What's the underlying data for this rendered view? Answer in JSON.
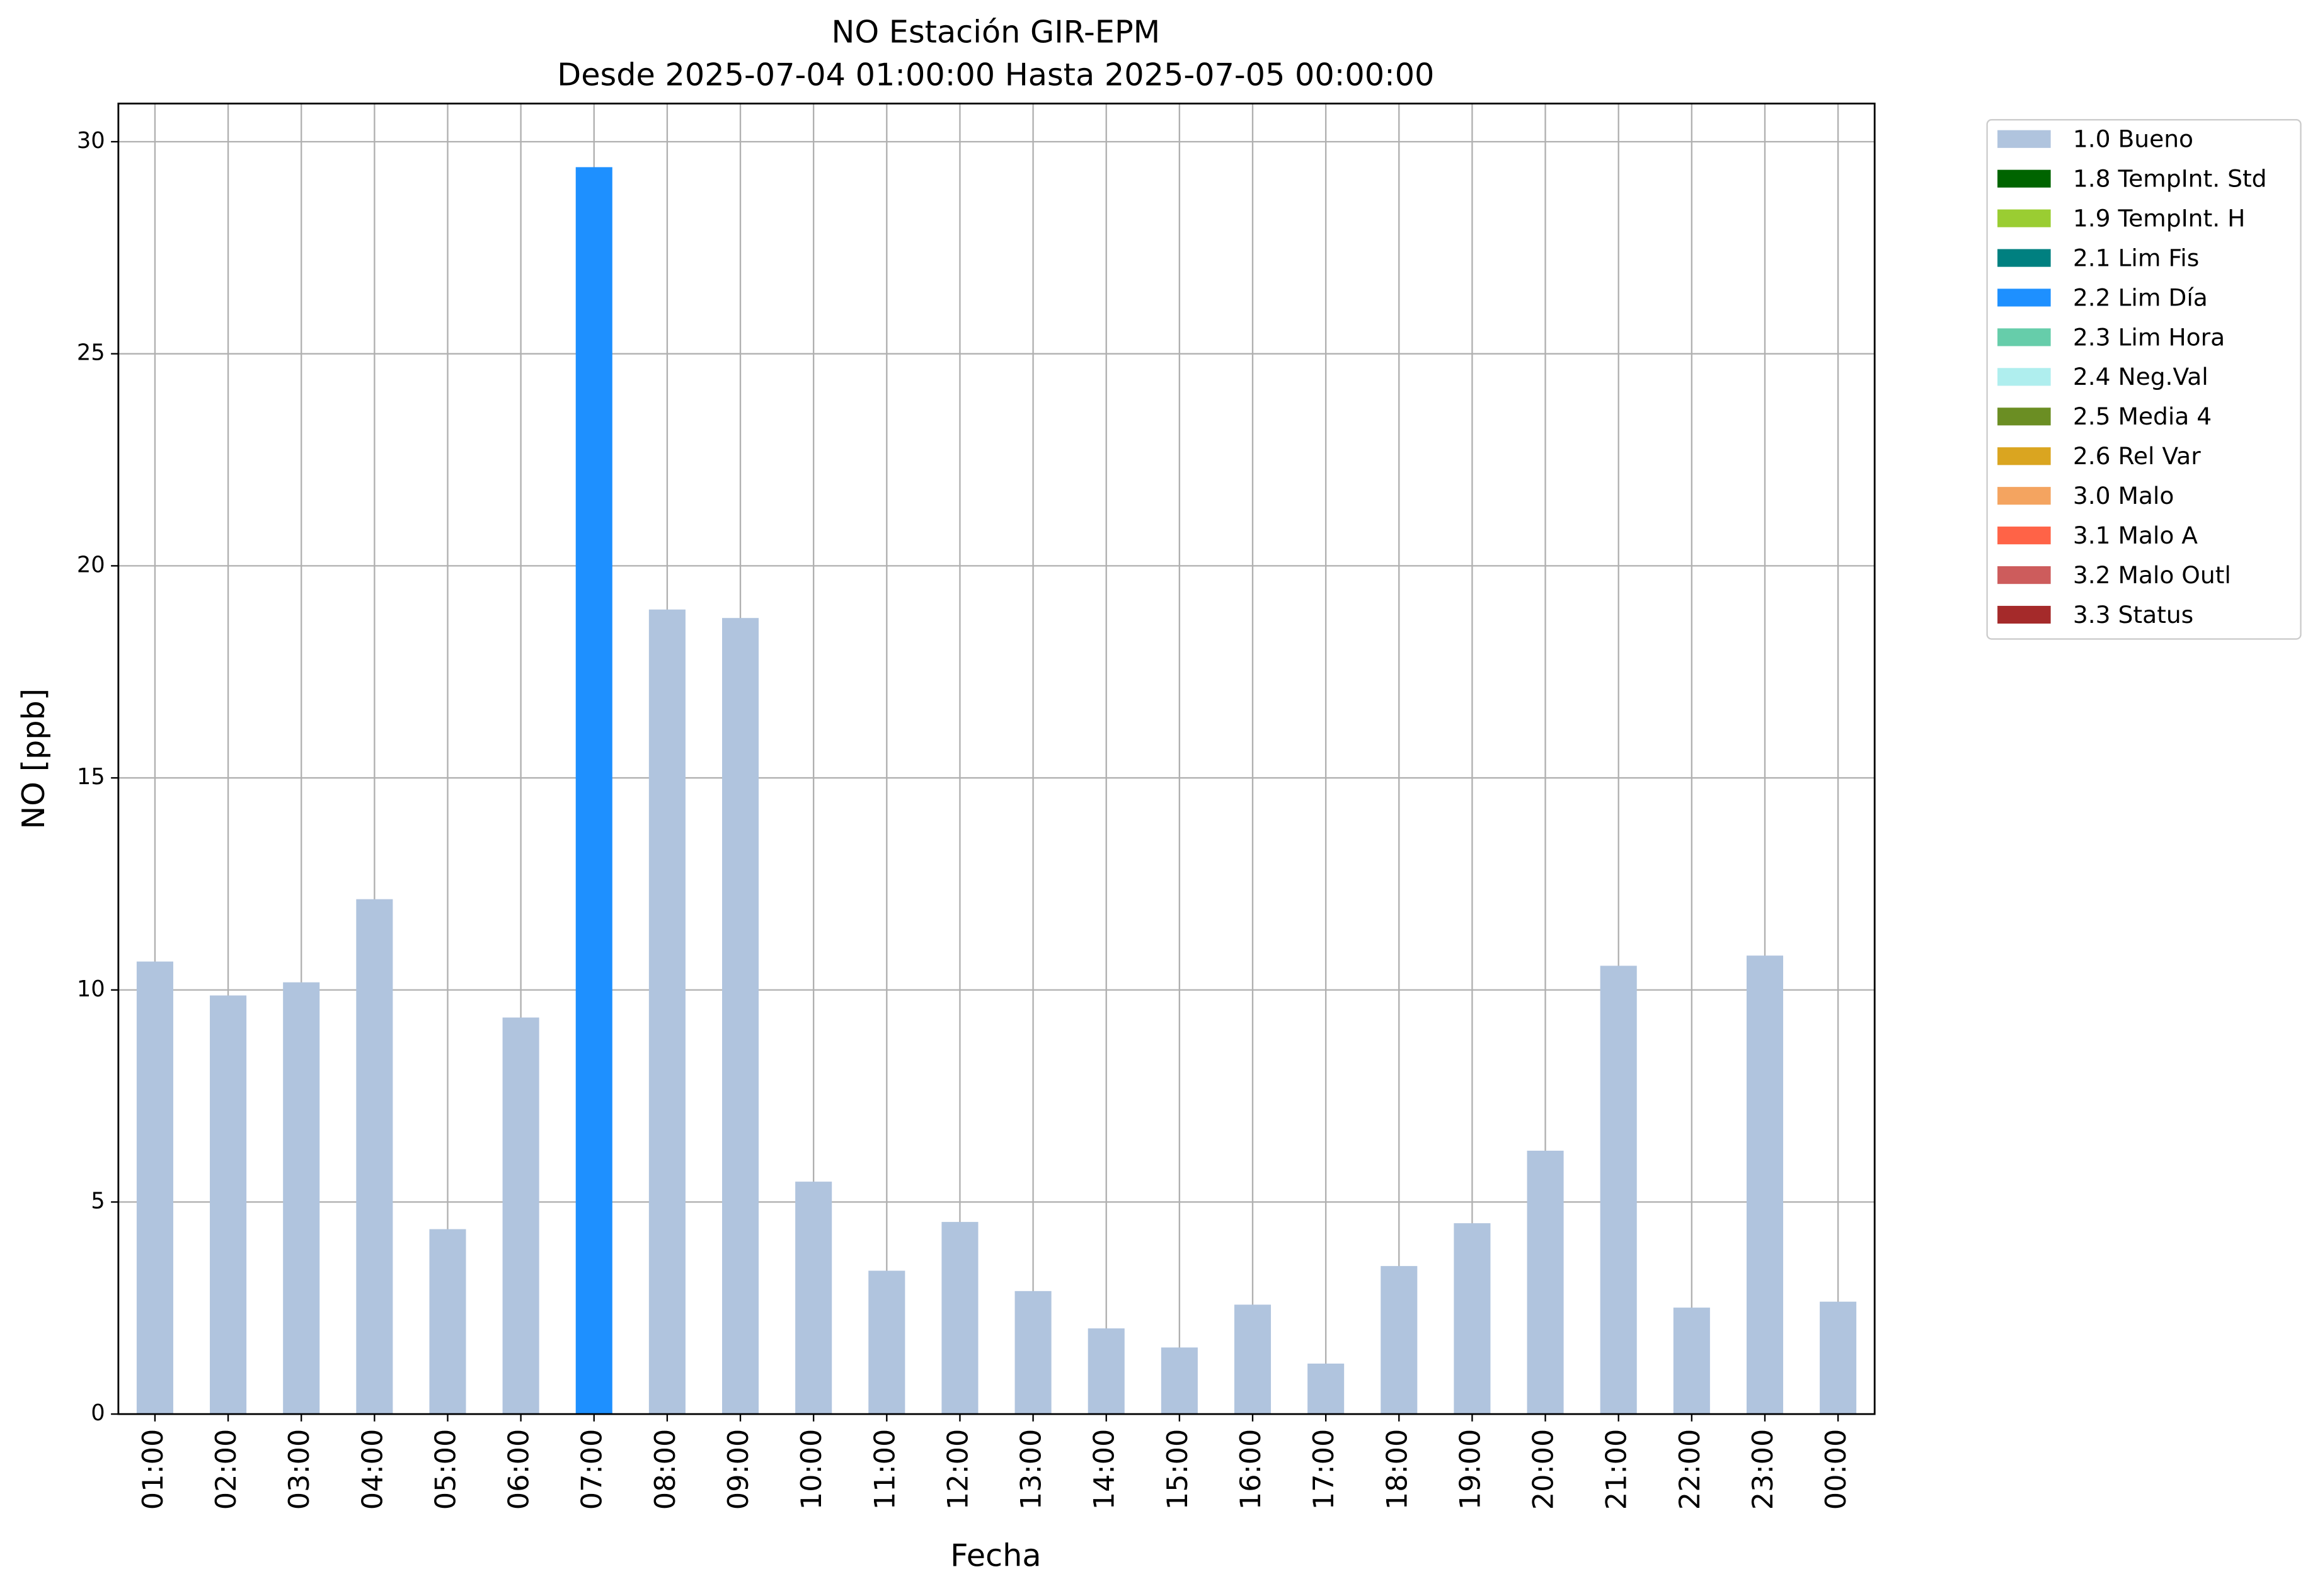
{
  "chart_data": {
    "type": "stacked_bar",
    "title": "NO Estación GIR-EPM",
    "subtitle": "Desde 2025-07-04 01:00:00 Hasta 2025-07-05 00:00:00",
    "x_label": "Fecha",
    "y_label": "NO [ppb]",
    "categories": [
      "01:00",
      "02:00",
      "03:00",
      "04:00",
      "05:00",
      "06:00",
      "07:00",
      "08:00",
      "09:00",
      "10:00",
      "11:00",
      "12:00",
      "13:00",
      "14:00",
      "15:00",
      "16:00",
      "17:00",
      "18:00",
      "19:00",
      "20:00",
      "21:00",
      "22:00",
      "23:00",
      "00:00"
    ],
    "series": [
      {
        "name": "1.0 Bueno",
        "color": "#b0c4de",
        "values": [
          10.67,
          9.87,
          10.18,
          12.14,
          4.36,
          9.35,
          null,
          18.97,
          18.77,
          5.48,
          3.38,
          4.53,
          2.9,
          2.02,
          1.57,
          2.58,
          1.19,
          3.49,
          4.5,
          6.21,
          10.57,
          2.51,
          10.81,
          2.65
        ]
      },
      {
        "name": "1.8 TempInt. Std",
        "color": "#006400",
        "values": [
          null,
          null,
          null,
          null,
          null,
          null,
          null,
          null,
          null,
          null,
          null,
          null,
          null,
          null,
          null,
          null,
          null,
          null,
          null,
          null,
          null,
          null,
          null,
          null
        ]
      },
      {
        "name": "1.9 TempInt. H",
        "color": "#9acd32",
        "values": [
          null,
          null,
          null,
          null,
          null,
          null,
          null,
          null,
          null,
          null,
          null,
          null,
          null,
          null,
          null,
          null,
          null,
          null,
          null,
          null,
          null,
          null,
          null,
          null
        ]
      },
      {
        "name": "2.1 Lim Fis",
        "color": "#008080",
        "values": [
          null,
          null,
          null,
          null,
          null,
          null,
          null,
          null,
          null,
          null,
          null,
          null,
          null,
          null,
          null,
          null,
          null,
          null,
          null,
          null,
          null,
          null,
          null,
          null
        ]
      },
      {
        "name": "2.2 Lim Día",
        "color": "#1e90ff",
        "values": [
          null,
          null,
          null,
          null,
          null,
          null,
          29.4,
          null,
          null,
          null,
          null,
          null,
          null,
          null,
          null,
          null,
          null,
          null,
          null,
          null,
          null,
          null,
          null,
          null
        ]
      },
      {
        "name": "2.3 Lim Hora",
        "color": "#66cdaa",
        "values": [
          null,
          null,
          null,
          null,
          null,
          null,
          null,
          null,
          null,
          null,
          null,
          null,
          null,
          null,
          null,
          null,
          null,
          null,
          null,
          null,
          null,
          null,
          null,
          null
        ]
      },
      {
        "name": "2.4 Neg.Val",
        "color": "#afeeee",
        "values": [
          null,
          null,
          null,
          null,
          null,
          null,
          null,
          null,
          null,
          null,
          null,
          null,
          null,
          null,
          null,
          null,
          null,
          null,
          null,
          null,
          null,
          null,
          null,
          null
        ]
      },
      {
        "name": "2.5 Media 4",
        "color": "#6b8e23",
        "values": [
          null,
          null,
          null,
          null,
          null,
          null,
          null,
          null,
          null,
          null,
          null,
          null,
          null,
          null,
          null,
          null,
          null,
          null,
          null,
          null,
          null,
          null,
          null,
          null
        ]
      },
      {
        "name": "2.6 Rel Var",
        "color": "#daa520",
        "values": [
          null,
          null,
          null,
          null,
          null,
          null,
          null,
          null,
          null,
          null,
          null,
          null,
          null,
          null,
          null,
          null,
          null,
          null,
          null,
          null,
          null,
          null,
          null,
          null
        ]
      },
      {
        "name": "3.0 Malo",
        "color": "#f4a460",
        "values": [
          null,
          null,
          null,
          null,
          null,
          null,
          null,
          null,
          null,
          null,
          null,
          null,
          null,
          null,
          null,
          null,
          null,
          null,
          null,
          null,
          null,
          null,
          null,
          null
        ]
      },
      {
        "name": "3.1 Malo A",
        "color": "#ff6347",
        "values": [
          null,
          null,
          null,
          null,
          null,
          null,
          null,
          null,
          null,
          null,
          null,
          null,
          null,
          null,
          null,
          null,
          null,
          null,
          null,
          null,
          null,
          null,
          null,
          null
        ]
      },
      {
        "name": "3.2 Malo Outl",
        "color": "#cd5c5c",
        "values": [
          null,
          null,
          null,
          null,
          null,
          null,
          null,
          null,
          null,
          null,
          null,
          null,
          null,
          null,
          null,
          null,
          null,
          null,
          null,
          null,
          null,
          null,
          null,
          null
        ]
      },
      {
        "name": "3.3 Status",
        "color": "#a52a2a",
        "values": [
          null,
          null,
          null,
          null,
          null,
          null,
          null,
          null,
          null,
          null,
          null,
          null,
          null,
          null,
          null,
          null,
          null,
          null,
          null,
          null,
          null,
          null,
          null,
          null
        ]
      }
    ],
    "ylim": [
      0,
      30.9
    ],
    "yticks": [
      0,
      5,
      10,
      15,
      20,
      25,
      30
    ],
    "grid": true,
    "legend": "outside-upper-right"
  }
}
